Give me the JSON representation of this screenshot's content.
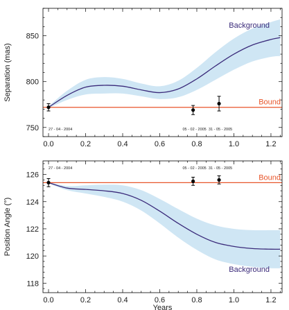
{
  "chart_data": [
    {
      "type": "line",
      "panel": "top",
      "xlabel": "",
      "ylabel": "Separation (mas)",
      "xlim": [
        -0.03,
        1.26
      ],
      "ylim": [
        740,
        880
      ],
      "xticks": [
        0.0,
        0.2,
        0.4,
        0.6,
        0.8,
        1.0,
        1.2
      ],
      "xtick_labels": [
        "0.0",
        "0.2",
        "0.4",
        "0.6",
        "0.8",
        "1.0",
        "1.2"
      ],
      "yticks": [
        750,
        800,
        850
      ],
      "ytick_labels": [
        "750",
        "800",
        "850"
      ],
      "date_labels": [
        {
          "text": "27 - 04 - 2004",
          "x": 0.0
        },
        {
          "text": "05 - 02 - 2005",
          "x": 0.78
        },
        {
          "text": "31 - 05 - 2005",
          "x": 0.92
        }
      ],
      "background": {
        "label": "Background",
        "color": "#3a2a7a",
        "band_color": "#cfe6f4",
        "x": [
          0.0,
          0.1,
          0.2,
          0.3,
          0.4,
          0.5,
          0.6,
          0.7,
          0.8,
          0.9,
          1.0,
          1.1,
          1.2,
          1.25
        ],
        "y": [
          772,
          785,
          794,
          796,
          795,
          791,
          788,
          792,
          803,
          817,
          830,
          840,
          846,
          848
        ],
        "band_half_width": [
          1,
          5,
          8,
          9,
          8,
          7,
          7,
          9,
          12,
          15,
          17,
          18,
          19,
          20
        ]
      },
      "bound": {
        "label": "Bound",
        "color": "#e8552a",
        "value": 772
      },
      "measurements": [
        {
          "x": 0.0,
          "y": 772,
          "err": 4
        },
        {
          "x": 0.78,
          "y": 769,
          "err": 5
        },
        {
          "x": 0.92,
          "y": 776,
          "err": 8
        }
      ]
    },
    {
      "type": "line",
      "panel": "bottom",
      "xlabel": "Years",
      "ylabel": "Position Angle (°)",
      "xlim": [
        -0.03,
        1.26
      ],
      "ylim": [
        117.3,
        127
      ],
      "xticks": [
        0.0,
        0.2,
        0.4,
        0.6,
        0.8,
        1.0,
        1.2
      ],
      "xtick_labels": [
        "0.0",
        "0.2",
        "0.4",
        "0.6",
        "0.8",
        "1.0",
        "1.2"
      ],
      "yticks": [
        118,
        120,
        122,
        124,
        126
      ],
      "ytick_labels": [
        "118",
        "120",
        "122",
        "124",
        "126"
      ],
      "date_labels": [
        {
          "text": "27 - 04 - 2004",
          "x": 0.0
        },
        {
          "text": "05 - 02 - 2005",
          "x": 0.78
        },
        {
          "text": "31 - 05 - 2005",
          "x": 0.92
        }
      ],
      "background": {
        "label": "Background",
        "color": "#3a2a7a",
        "band_color": "#cfe6f4",
        "x": [
          0.0,
          0.1,
          0.2,
          0.3,
          0.4,
          0.5,
          0.6,
          0.7,
          0.8,
          0.9,
          1.0,
          1.1,
          1.2,
          1.25
        ],
        "y": [
          125.4,
          125.0,
          124.9,
          124.8,
          124.6,
          124.1,
          123.3,
          122.4,
          121.6,
          121.0,
          120.7,
          120.55,
          120.5,
          120.5
        ],
        "band_half_width": [
          0.05,
          0.15,
          0.3,
          0.45,
          0.6,
          0.75,
          0.9,
          1.05,
          1.15,
          1.25,
          1.3,
          1.35,
          1.4,
          1.4
        ]
      },
      "bound": {
        "label": "Bound",
        "color": "#e8552a",
        "value": 125.4
      },
      "measurements": [
        {
          "x": 0.0,
          "y": 125.4,
          "err": 0.3
        },
        {
          "x": 0.78,
          "y": 125.5,
          "err": 0.3
        },
        {
          "x": 0.92,
          "y": 125.6,
          "err": 0.3
        }
      ]
    }
  ]
}
